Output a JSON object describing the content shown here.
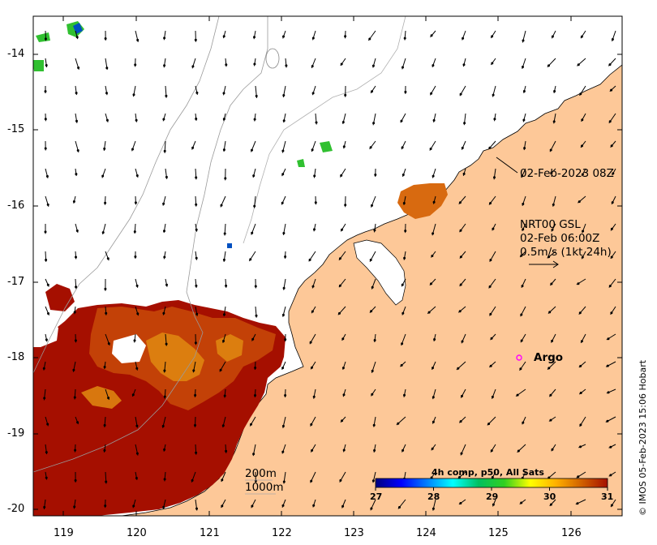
{
  "map": {
    "lat_ticks": [
      "-14",
      "-15",
      "-16",
      "-17",
      "-18",
      "-19",
      "-20"
    ],
    "lon_ticks": [
      "119",
      "120",
      "121",
      "122",
      "123",
      "124",
      "125",
      "126"
    ],
    "lat_range": [
      -20.1,
      -13.5
    ],
    "lon_range": [
      118.6,
      126.7
    ],
    "land_color": "#fdc898",
    "sst_hot_color": "#a50f00"
  },
  "annotations": {
    "timestamp": "02-Feb-2023 08Z",
    "current_source": "NRT00 GSL",
    "current_time": "02-Feb 06:00Z",
    "scale_text": "0.5m/s (1kt 24h)"
  },
  "argo": {
    "label": "Argo",
    "marker_color": "#ff00ff"
  },
  "contours": {
    "label_200": "200m",
    "label_1000": "1000m"
  },
  "colorbar": {
    "title": "4h comp, p50, All Sats",
    "ticks": [
      "27",
      "28",
      "29",
      "30",
      "31"
    ],
    "min": 27,
    "max": 31,
    "colors": [
      "#00007f",
      "#0000ff",
      "#0080ff",
      "#00ffff",
      "#00c060",
      "#30d020",
      "#ffff00",
      "#ffb000",
      "#d06000",
      "#a50f00"
    ]
  },
  "credit": "© IMOS 05-Feb-2023 15:06 Hobart"
}
